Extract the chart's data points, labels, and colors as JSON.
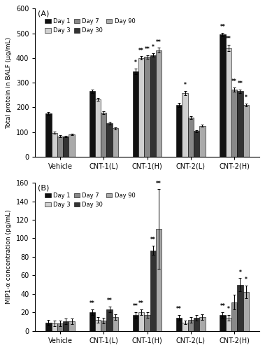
{
  "panel_A": {
    "title": "(A)",
    "ylabel": "Total protein in BALF (μg/mL)",
    "ylim": [
      0,
      600
    ],
    "yticks": [
      0,
      100,
      200,
      300,
      400,
      500,
      600
    ],
    "groups": [
      "Vehicle",
      "CNT-1(L)",
      "CNT-1(H)",
      "CNT-2(L)",
      "CNT-2(H)"
    ],
    "days": [
      "Day 1",
      "Day 3",
      "Day 7",
      "Day 30",
      "Day 90"
    ],
    "colors": [
      "#111111",
      "#d0d0d0",
      "#888888",
      "#333333",
      "#aaaaaa"
    ],
    "values": [
      [
        175,
        97,
        83,
        82,
        90
      ],
      [
        265,
        232,
        178,
        135,
        115
      ],
      [
        345,
        400,
        405,
        412,
        432
      ],
      [
        210,
        258,
        158,
        103,
        125
      ],
      [
        495,
        440,
        272,
        265,
        210
      ]
    ],
    "errors": [
      [
        5,
        4,
        3,
        3,
        4
      ],
      [
        8,
        6,
        5,
        5,
        4
      ],
      [
        12,
        7,
        7,
        8,
        9
      ],
      [
        8,
        9,
        5,
        3,
        5
      ],
      [
        8,
        13,
        9,
        7,
        6
      ]
    ],
    "significance": [
      [
        null,
        null,
        null,
        null,
        null
      ],
      [
        null,
        null,
        null,
        null,
        null
      ],
      [
        "*",
        "**",
        "**",
        "*",
        "**"
      ],
      [
        null,
        "*",
        null,
        null,
        null
      ],
      [
        "**",
        "**",
        "**",
        "**",
        "*"
      ]
    ]
  },
  "panel_B": {
    "title": "(B)",
    "ylabel": "MIP1-α concentration (pg/mL)",
    "ylim": [
      0,
      160
    ],
    "yticks": [
      0,
      20,
      40,
      60,
      80,
      100,
      120,
      140,
      160
    ],
    "groups": [
      "Vehicle",
      "CNT-1(L)",
      "CNT-1(H)",
      "CNT-2(L)",
      "CNT-2(H)"
    ],
    "days": [
      "Day 1",
      "Day 3",
      "Day 7",
      "Day 30",
      "Day 90"
    ],
    "colors": [
      "#111111",
      "#d0d0d0",
      "#888888",
      "#333333",
      "#aaaaaa"
    ],
    "values": [
      [
        9,
        8,
        8,
        10,
        10
      ],
      [
        20,
        12,
        11,
        23,
        15
      ],
      [
        17,
        20,
        17,
        87,
        110
      ],
      [
        14,
        9,
        12,
        14,
        15
      ],
      [
        17,
        14,
        31,
        50,
        42
      ]
    ],
    "errors": [
      [
        3,
        3,
        3,
        3,
        3
      ],
      [
        3,
        3,
        3,
        3,
        3
      ],
      [
        3,
        3,
        3,
        5,
        43
      ],
      [
        3,
        2,
        3,
        3,
        3
      ],
      [
        3,
        3,
        8,
        7,
        7
      ]
    ],
    "significance": [
      [
        null,
        null,
        null,
        null,
        null
      ],
      [
        "**",
        null,
        null,
        "**",
        null
      ],
      [
        "**",
        "**",
        null,
        "**",
        "**"
      ],
      [
        "**",
        null,
        null,
        null,
        null
      ],
      [
        "**",
        "*",
        null,
        "*",
        "*"
      ]
    ]
  }
}
